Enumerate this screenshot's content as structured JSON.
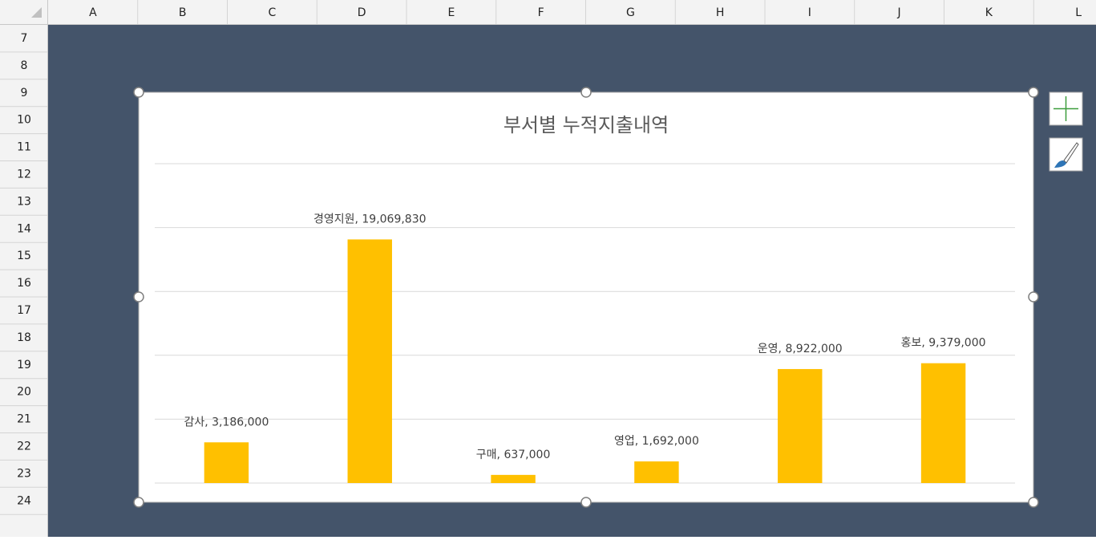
{
  "sheet": {
    "columns": [
      "A",
      "B",
      "C",
      "D",
      "E",
      "F",
      "G",
      "H",
      "I",
      "J",
      "K",
      "L"
    ],
    "rows": [
      "7",
      "8",
      "9",
      "10",
      "11",
      "12",
      "13",
      "14",
      "15",
      "16",
      "17",
      "18",
      "19",
      "20",
      "21",
      "22",
      "23",
      "24"
    ]
  },
  "chart_data": {
    "type": "bar",
    "title": "부서별 누적지출내역",
    "values": [
      3186000,
      19069830,
      637000,
      1692000,
      8922000,
      9379000
    ],
    "value_labels": [
      "감사, 3,186,000",
      "경영지원, 19,069,830",
      "구매, 637,000",
      "영업, 1,692,000",
      "운영, 8,922,000",
      "홍보, 9,379,000"
    ],
    "color": "#ffc000",
    "ylim": [
      0,
      25000000
    ],
    "yticks": [
      0,
      5000000,
      10000000,
      15000000,
      20000000,
      25000000
    ],
    "grid": true
  }
}
